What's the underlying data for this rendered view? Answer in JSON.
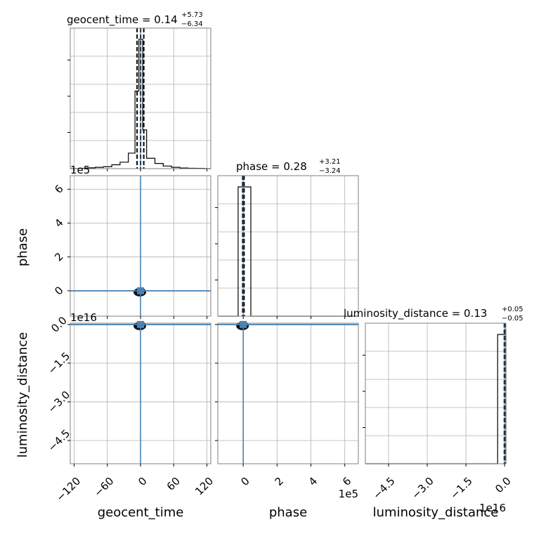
{
  "chart_data": {
    "type": "corner",
    "parameters": [
      "geocent_time",
      "phase",
      "luminosity_distance"
    ],
    "titles": [
      {
        "param": "geocent_time",
        "label": "geocent_time = 0.14",
        "plus": "+5.73",
        "minus": "−6.34"
      },
      {
        "param": "phase",
        "label": "phase = 0.28",
        "plus": "+3.21",
        "minus": "−3.24"
      },
      {
        "param": "luminosity_distance",
        "label": "luminosity_distance = 0.13",
        "plus": "+0.05",
        "minus": "−0.05"
      }
    ],
    "axes": {
      "geocent_time": {
        "range": [
          -127,
          127
        ],
        "ticks": [
          -120,
          -60,
          0,
          60,
          120
        ],
        "tick_labels": [
          "−120",
          "−60",
          "0",
          "60",
          "120"
        ],
        "offset": ""
      },
      "phase": {
        "range": [
          -1.5,
          6.8
        ],
        "ticks": [
          0,
          2,
          4,
          6
        ],
        "tick_labels": [
          "0",
          "2",
          "4",
          "6"
        ],
        "offset": "1e5"
      },
      "luminosity_distance": {
        "range": [
          -5.4,
          0.05
        ],
        "ticks": [
          -4.5,
          -3.0,
          -1.5,
          0.0
        ],
        "tick_labels": [
          "−4.5",
          "−3.0",
          "−1.5",
          "0.0"
        ],
        "offset": "1e16"
      }
    },
    "histograms": {
      "geocent_time": {
        "bin_edges": [
          -127,
          -112,
          -97,
          -82,
          -67,
          -52,
          -37,
          -22,
          -10,
          -3,
          4,
          11,
          26,
          41,
          56,
          71,
          86,
          101,
          116,
          127
        ],
        "counts": [
          0,
          0.3,
          0.6,
          1,
          1.5,
          3,
          5,
          12,
          60,
          100,
          30,
          8,
          4,
          2,
          1,
          0.5,
          0.3,
          0.2,
          0
        ]
      },
      "phase": {
        "bin_edges": [
          -1.5,
          -0.3,
          0.05,
          0.45,
          6.8
        ],
        "counts": [
          0,
          100,
          100,
          0
        ]
      },
      "luminosity_distance": {
        "bin_edges": [
          -5.4,
          -0.27,
          -0.03,
          0.05
        ],
        "counts": [
          0,
          100,
          100
        ]
      }
    },
    "quantiles": {
      "geocent_time": [
        -6.2,
        0.14,
        5.87
      ],
      "phase": [
        -0.03,
        0.0,
        0.05
      ],
      "luminosity_distance": [
        -0.01,
        0.0,
        0.01
      ]
    },
    "truths": {
      "geocent_time": 0.0,
      "phase": 0.0,
      "luminosity_distance": 0.0
    },
    "grid": true
  }
}
